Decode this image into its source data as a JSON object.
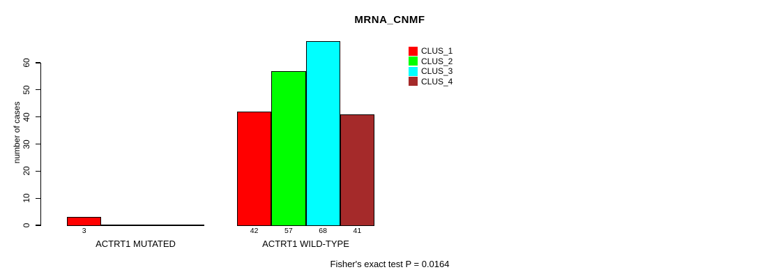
{
  "chart_data": {
    "type": "bar",
    "title": "MRNA_CNMF",
    "ylabel": "number of cases",
    "footer": "Fisher's exact test P = 0.0164",
    "yticks": [
      0,
      10,
      20,
      30,
      40,
      50,
      60
    ],
    "ylim": [
      0,
      68
    ],
    "grid": false,
    "legend_position": "top-right",
    "bar_border_color": "#000000",
    "series": [
      {
        "name": "CLUS_1",
        "color": "#FF0000"
      },
      {
        "name": "CLUS_2",
        "color": "#00FF00"
      },
      {
        "name": "CLUS_3",
        "color": "#00FFFF"
      },
      {
        "name": "CLUS_4",
        "color": "#A52A2A"
      }
    ],
    "groups": [
      {
        "label": "ACTRT1 MUTATED",
        "values": [
          3,
          0,
          0,
          0
        ]
      },
      {
        "label": "ACTRT1 WILD-TYPE",
        "values": [
          42,
          57,
          68,
          41
        ]
      }
    ]
  }
}
